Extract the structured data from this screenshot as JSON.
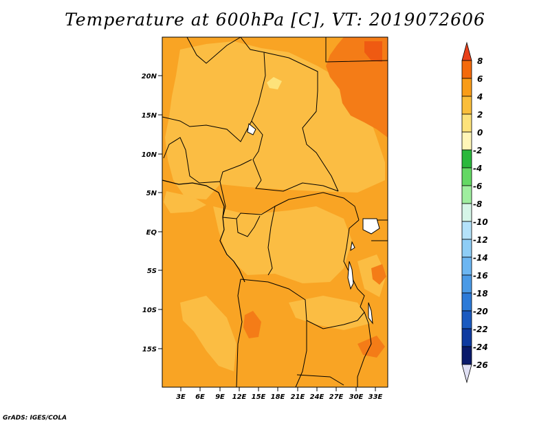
{
  "title": "Temperature at 600hPa [C], VT: 2019072606",
  "credit": "GrADS: IGES/COLA",
  "map": {
    "lat_labels": [
      "20N",
      "15N",
      "10N",
      "5N",
      "EQ",
      "5S",
      "10S",
      "15S"
    ],
    "lon_labels": [
      "3E",
      "6E",
      "9E",
      "12E",
      "15E",
      "18E",
      "21E",
      "24E",
      "27E",
      "30E",
      "33E"
    ]
  },
  "colorbar": {
    "labels": [
      "8",
      "6",
      "4",
      "2",
      "0",
      "-2",
      "-4",
      "-6",
      "-8",
      "-10",
      "-12",
      "-14",
      "-16",
      "-18",
      "-20",
      "-22",
      "-24",
      "-26"
    ],
    "colors": [
      "#e8401a",
      "#f36a0c",
      "#f99c18",
      "#fbbe3a",
      "#fde27a",
      "#fff6b8",
      "#2ab83c",
      "#64d864",
      "#9fee9f",
      "#d6f6e8",
      "#b4e2fa",
      "#8ecdf6",
      "#6cb6f2",
      "#4a9ae6",
      "#2c7ad8",
      "#1a5ac0",
      "#0e3aa0",
      "#0a1a6a",
      "#e0e0f4"
    ]
  },
  "colors": {
    "base_fill": "#f9a424",
    "light_fill": "#fbbd43",
    "dark_fill": "#f47c17",
    "pale_fill": "#fde27a",
    "border": "#000000"
  }
}
